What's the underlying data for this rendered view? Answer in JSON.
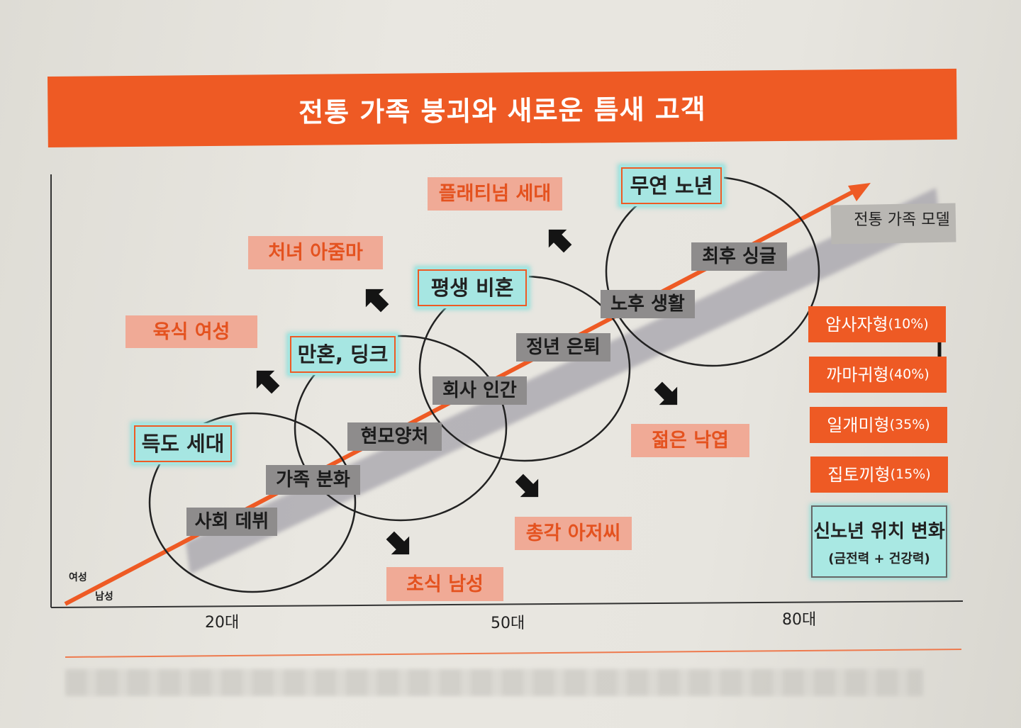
{
  "title": "전통 가족 붕괴와 새로운 틈새 고객",
  "axis": {
    "y_label_female": "여성",
    "y_label_male": "남성",
    "x_ticks": [
      "20대",
      "50대",
      "80대"
    ]
  },
  "model_label": "전통 가족 모델",
  "timeline_stages": [
    "사회 데뷔",
    "가족 분화",
    "현모양처",
    "회사 인간",
    "정년 은퇴",
    "노후 생활",
    "최후 싱글"
  ],
  "new_types_women": [
    "육식 여성",
    "처녀 아줌마",
    "플래티넘 세대"
  ],
  "new_types_men": [
    "초식 남성",
    "총각 아저씨",
    "젊은 낙엽"
  ],
  "single_types": [
    "득도 세대",
    "만혼, 딩크",
    "평생 비혼",
    "무연 노년"
  ],
  "elder_types": [
    {
      "name": "암사자형",
      "pct": "(10%)"
    },
    {
      "name": "까마귀형",
      "pct": "(40%)"
    },
    {
      "name": "일개미형",
      "pct": "(35%)"
    },
    {
      "name": "집토끼형",
      "pct": "(15%)"
    }
  ],
  "notice": {
    "line1": "신노년 위치 변화",
    "line2": "(금전력 + 건강력)"
  },
  "colors": {
    "accent": "#ee5a24",
    "salmon": "#f0aa96",
    "cyan": "#a6e6e2",
    "gray": "#8e8c8c"
  }
}
